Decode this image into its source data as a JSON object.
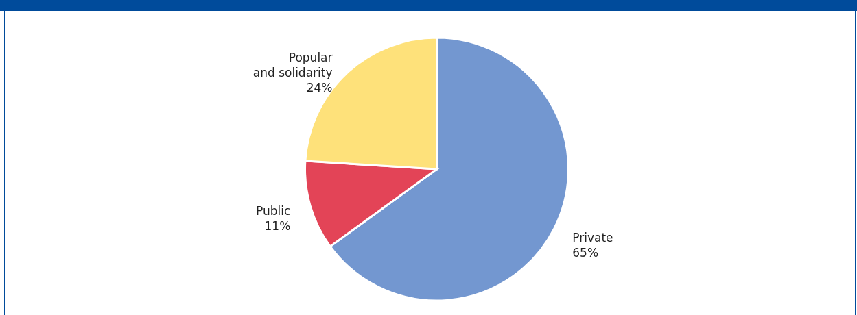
{
  "chart_data": {
    "type": "pie",
    "categories": [
      "Private",
      "Public",
      "Popular and solidarity"
    ],
    "values": [
      65,
      11,
      24
    ],
    "colors": [
      "#7397d0",
      "#e34457",
      "#fee17a"
    ],
    "value_labels": [
      "65%",
      "11%",
      "24%"
    ]
  }
}
